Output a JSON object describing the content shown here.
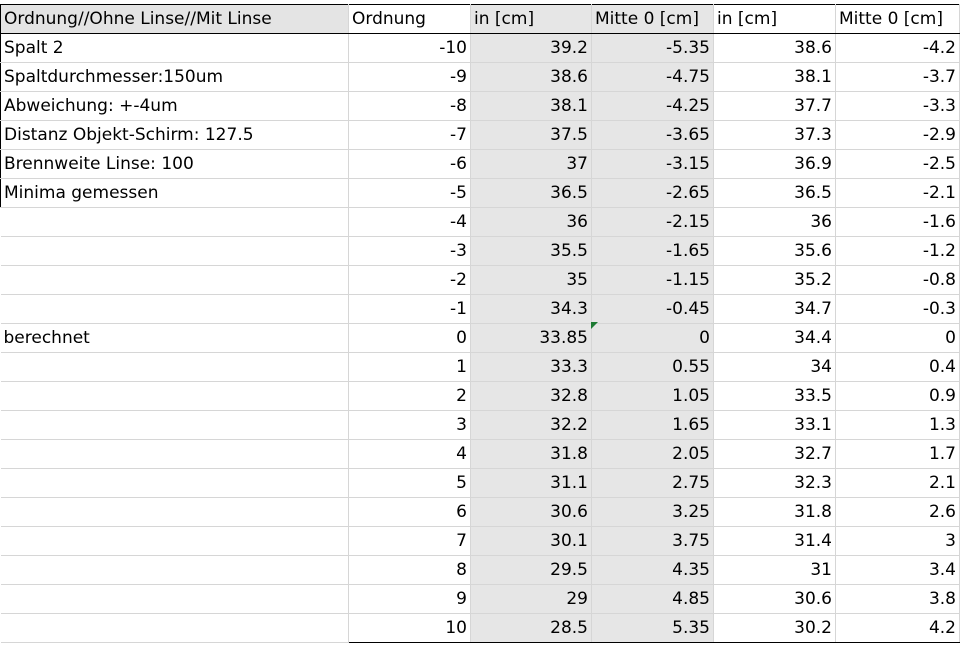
{
  "headers": [
    "Ordnung//Ohne Linse//Mit Linse",
    "Ordnung",
    "in [cm]",
    "Mitte 0 [cm]",
    "in [cm]",
    "Mitte 0 [cm]"
  ],
  "notes": [
    "Spalt 2",
    "Spaltdurchmesser:150um",
    "Abweichung: +-4um",
    "Distanz Objekt-Schirm: 127.5",
    "Brennweite Linse: 100",
    "Minima gemessen",
    "",
    "",
    "",
    "",
    "berechnet",
    "",
    "",
    "",
    "",
    "",
    "",
    "",
    "",
    "",
    ""
  ],
  "rows": [
    [
      "-10",
      "39.2",
      "-5.35",
      "38.6",
      "-4.2"
    ],
    [
      "-9",
      "38.6",
      "-4.75",
      "38.1",
      "-3.7"
    ],
    [
      "-8",
      "38.1",
      "-4.25",
      "37.7",
      "-3.3"
    ],
    [
      "-7",
      "37.5",
      "-3.65",
      "37.3",
      "-2.9"
    ],
    [
      "-6",
      "37",
      "-3.15",
      "36.9",
      "-2.5"
    ],
    [
      "-5",
      "36.5",
      "-2.65",
      "36.5",
      "-2.1"
    ],
    [
      "-4",
      "36",
      "-2.15",
      "36",
      "-1.6"
    ],
    [
      "-3",
      "35.5",
      "-1.65",
      "35.6",
      "-1.2"
    ],
    [
      "-2",
      "35",
      "-1.15",
      "35.2",
      "-0.8"
    ],
    [
      "-1",
      "34.3",
      "-0.45",
      "34.7",
      "-0.3"
    ],
    [
      "0",
      "33.85",
      "0",
      "34.4",
      "0"
    ],
    [
      "1",
      "33.3",
      "0.55",
      "34",
      "0.4"
    ],
    [
      "2",
      "32.8",
      "1.05",
      "33.5",
      "0.9"
    ],
    [
      "3",
      "32.2",
      "1.65",
      "33.1",
      "1.3"
    ],
    [
      "4",
      "31.8",
      "2.05",
      "32.7",
      "1.7"
    ],
    [
      "5",
      "31.1",
      "2.75",
      "32.3",
      "2.1"
    ],
    [
      "6",
      "30.6",
      "3.25",
      "31.8",
      "2.6"
    ],
    [
      "7",
      "30.1",
      "3.75",
      "31.4",
      "3"
    ],
    [
      "8",
      "29.5",
      "4.35",
      "31",
      "3.4"
    ],
    [
      "9",
      "29",
      "4.85",
      "30.6",
      "3.8"
    ],
    [
      "10",
      "28.5",
      "5.35",
      "30.2",
      "4.2"
    ]
  ],
  "colors": {
    "header_fill": "#e4e4e4",
    "shaded_fill": "#e6e6e6",
    "comment_marker": "#1e7b34"
  }
}
